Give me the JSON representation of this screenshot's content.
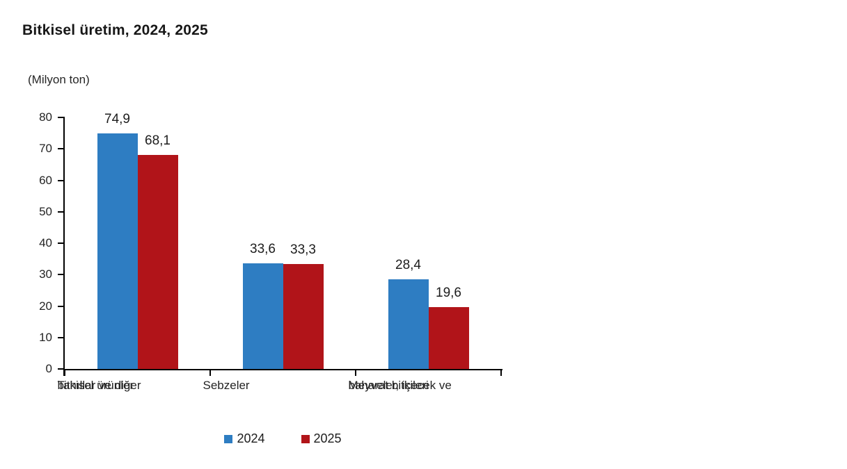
{
  "page": {
    "background": "#ffffff"
  },
  "chart_data": {
    "type": "bar",
    "title": "Bitkisel üretim, 2024, 2025",
    "unit_label": "(Milyon ton)",
    "categories": [
      {
        "lines": [
          "Tahıllar ve diğer",
          "bitkisel ürünler"
        ]
      },
      {
        "lines": [
          "Sebzeler"
        ]
      },
      {
        "lines": [
          "Meyveler, içecek ve",
          "baharat bitkileri"
        ]
      }
    ],
    "series": [
      {
        "name": "2024",
        "color": "#2e7dc2",
        "values": [
          74.9,
          33.6,
          28.4
        ],
        "value_labels": [
          "74,9",
          "33,6",
          "28,4"
        ]
      },
      {
        "name": "2025",
        "color": "#b11419",
        "values": [
          68.1,
          33.3,
          19.6
        ],
        "value_labels": [
          "68,1",
          "33,3",
          "19,6"
        ]
      }
    ],
    "y_axis": {
      "min": 0,
      "max": 80,
      "step": 10,
      "tick_labels": [
        "0",
        "10",
        "20",
        "30",
        "40",
        "50",
        "60",
        "70",
        "80"
      ]
    },
    "legend": {
      "position": "bottom",
      "entries": [
        "2024",
        "2025"
      ]
    },
    "grid": false,
    "axis_color": "#000000",
    "text_color": "#242424"
  }
}
